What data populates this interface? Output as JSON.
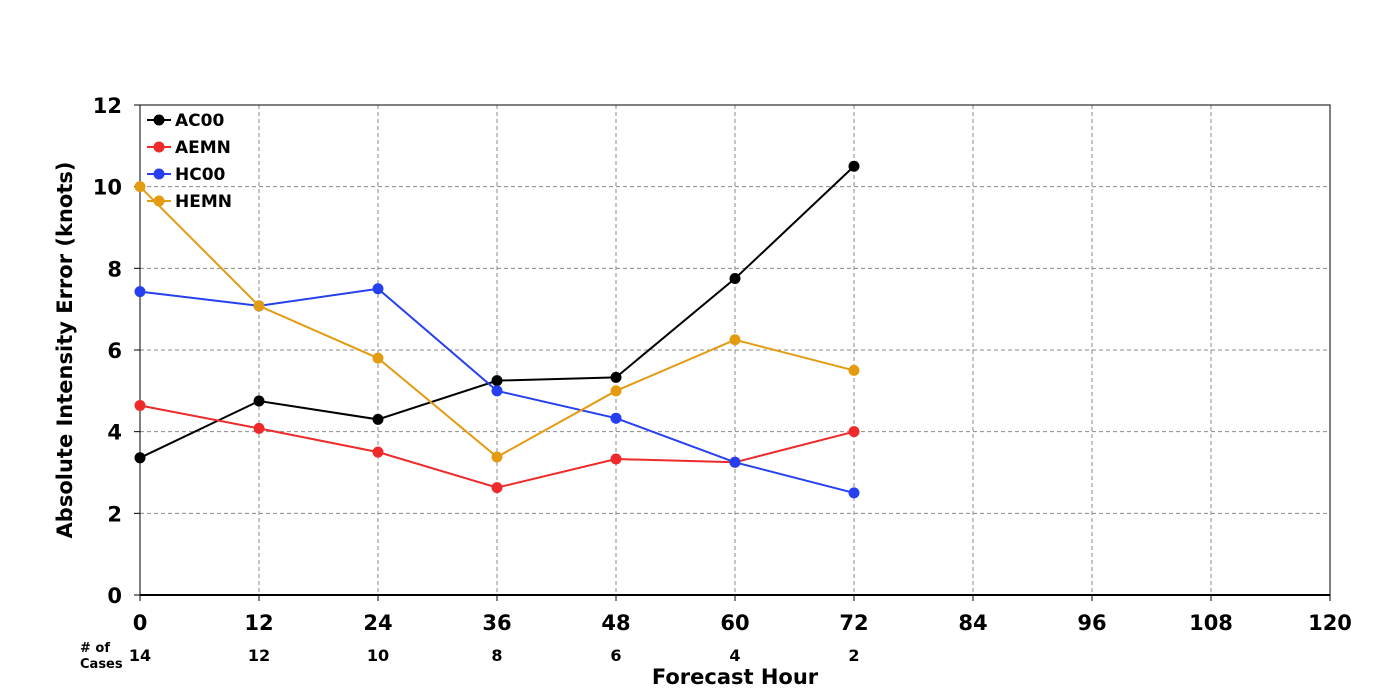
{
  "chart_data": {
    "type": "line",
    "title": "",
    "xlabel": "Forecast Hour",
    "ylabel": "Absolute Intensity Error (knots)",
    "xlim": [
      0,
      120
    ],
    "ylim": [
      0,
      12
    ],
    "x_ticks": [
      "0",
      "12",
      "24",
      "36",
      "48",
      "60",
      "72",
      "84",
      "96",
      "108",
      "120"
    ],
    "y_ticks": [
      "0",
      "2",
      "4",
      "6",
      "8",
      "10",
      "12"
    ],
    "grid": true,
    "legend_position": "top-left",
    "cases_label": "# of Cases",
    "cases": [
      {
        "x": 0,
        "label": "14"
      },
      {
        "x": 12,
        "label": "12"
      },
      {
        "x": 24,
        "label": "10"
      },
      {
        "x": 36,
        "label": "8"
      },
      {
        "x": 48,
        "label": "6"
      },
      {
        "x": 60,
        "label": "4"
      },
      {
        "x": 72,
        "label": "2"
      }
    ],
    "x": [
      0,
      12,
      24,
      36,
      48,
      60,
      72
    ],
    "series": [
      {
        "name": "AC00",
        "color": "#000000",
        "values": [
          3.36,
          4.75,
          4.3,
          5.25,
          5.33,
          7.75,
          10.5
        ]
      },
      {
        "name": "AEMN",
        "color": "#ee2a2a",
        "values": [
          4.64,
          4.08,
          3.5,
          2.63,
          3.33,
          3.25,
          4.0
        ]
      },
      {
        "name": "HC00",
        "color": "#2640f0",
        "values": [
          7.43,
          7.08,
          7.5,
          5.0,
          4.33,
          3.25,
          2.5
        ]
      },
      {
        "name": "HEMN",
        "color": "#e39b12",
        "values": [
          10.0,
          7.08,
          5.8,
          3.38,
          5.0,
          6.25,
          5.5
        ]
      }
    ]
  }
}
